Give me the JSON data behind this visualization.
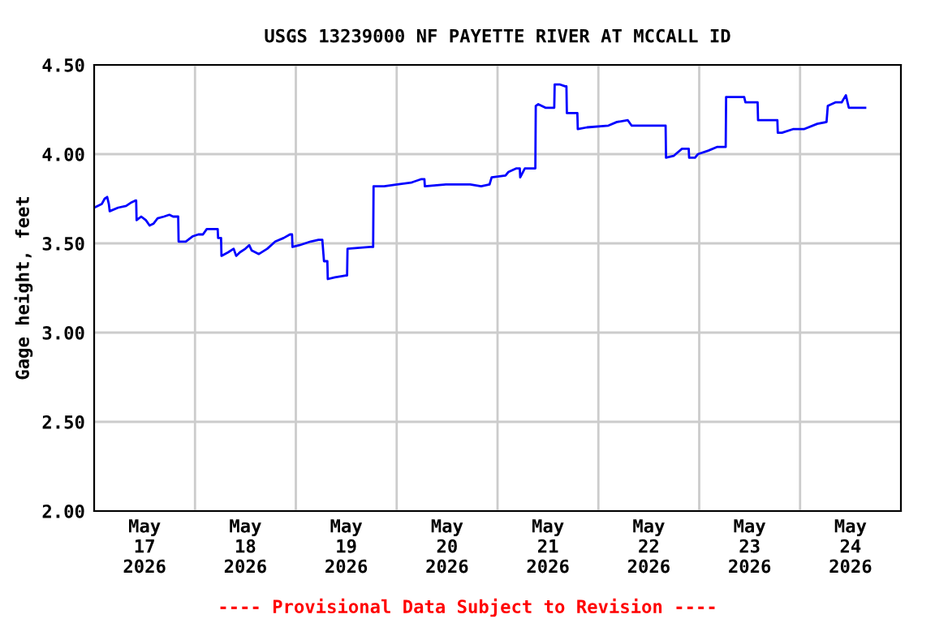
{
  "chart_data": {
    "type": "line",
    "title": "USGS 13239000 NF PAYETTE RIVER AT MCCALL ID",
    "ylabel": "Gage height, feet",
    "annotations": [
      "---- Provisional Data Subject to Revision ----"
    ],
    "xlim": [
      "2026-05-17T00:00",
      "2026-05-25T00:00"
    ],
    "xticks": [
      {
        "value": "2026-05-17T12:00",
        "label": "May\n17\n2026"
      },
      {
        "value": "2026-05-18T00:00",
        "label": null
      },
      {
        "value": "2026-05-18T12:00",
        "label": "May\n18\n2026"
      },
      {
        "value": "2026-05-19T00:00",
        "label": null
      },
      {
        "value": "2026-05-19T12:00",
        "label": "May\n19\n2026"
      },
      {
        "value": "2026-05-20T00:00",
        "label": null
      },
      {
        "value": "2026-05-20T12:00",
        "label": "May\n20\n2026"
      },
      {
        "value": "2026-05-21T00:00",
        "label": null
      },
      {
        "value": "2026-05-21T12:00",
        "label": "May\n21\n2026"
      },
      {
        "value": "2026-05-22T00:00",
        "label": null
      },
      {
        "value": "2026-05-22T12:00",
        "label": "May\n22\n2026"
      },
      {
        "value": "2026-05-23T00:00",
        "label": null
      },
      {
        "value": "2026-05-23T12:00",
        "label": "May\n23\n2026"
      },
      {
        "value": "2026-05-24T00:00",
        "label": null
      },
      {
        "value": "2026-05-24T12:00",
        "label": "May\n24\n2026"
      }
    ],
    "ylim": [
      2.0,
      4.5
    ],
    "yticks": [
      {
        "value": 2.0,
        "label": "2.00"
      },
      {
        "value": 2.5,
        "label": "2.50"
      },
      {
        "value": 3.0,
        "label": "3.00"
      },
      {
        "value": 3.5,
        "label": "3.50"
      },
      {
        "value": 4.0,
        "label": "4.00"
      },
      {
        "value": 4.5,
        "label": "4.50"
      }
    ],
    "grid": true,
    "series": [
      {
        "color": "#0000ff",
        "x": [
          "2026-05-17T00:00",
          "2026-05-17T01:48",
          "2026-05-17T02:30",
          "2026-05-17T03:06",
          "2026-05-17T03:30",
          "2026-05-17T03:42",
          "2026-05-17T05:42",
          "2026-05-17T07:36",
          "2026-05-17T08:54",
          "2026-05-17T09:48",
          "2026-05-17T10:00",
          "2026-05-17T10:06",
          "2026-05-17T11:12",
          "2026-05-17T12:18",
          "2026-05-17T13:12",
          "2026-05-17T14:06",
          "2026-05-17T15:06",
          "2026-05-17T16:36",
          "2026-05-17T17:54",
          "2026-05-17T18:48",
          "2026-05-17T19:42",
          "2026-05-17T20:00",
          "2026-05-17T20:06",
          "2026-05-17T21:48",
          "2026-05-17T23:30",
          "2026-05-18T00:48",
          "2026-05-18T01:54",
          "2026-05-18T02:48",
          "2026-05-18T05:00",
          "2026-05-18T05:24",
          "2026-05-18T05:30",
          "2026-05-18T06:12",
          "2026-05-18T06:18",
          "2026-05-18T07:54",
          "2026-05-18T09:12",
          "2026-05-18T09:48",
          "2026-05-18T10:42",
          "2026-05-18T12:00",
          "2026-05-18T12:54",
          "2026-05-18T13:30",
          "2026-05-18T15:12",
          "2026-05-18T17:12",
          "2026-05-18T19:06",
          "2026-05-18T21:06",
          "2026-05-18T22:36",
          "2026-05-18T23:06",
          "2026-05-18T23:12",
          "2026-05-19T00:54",
          "2026-05-19T03:30",
          "2026-05-19T05:24",
          "2026-05-19T06:18",
          "2026-05-19T06:42",
          "2026-05-19T07:30",
          "2026-05-19T07:36",
          "2026-05-19T09:18",
          "2026-05-19T11:54",
          "2026-05-19T12:12",
          "2026-05-19T12:18",
          "2026-05-19T17:42",
          "2026-05-19T18:24",
          "2026-05-19T18:30",
          "2026-05-19T21:00",
          "2026-05-20T00:06",
          "2026-05-20T03:24",
          "2026-05-20T05:54",
          "2026-05-20T06:36",
          "2026-05-20T06:42",
          "2026-05-20T11:42",
          "2026-05-20T17:30",
          "2026-05-20T20:06",
          "2026-05-20T22:06",
          "2026-05-20T22:36",
          "2026-05-21T01:54",
          "2026-05-21T02:36",
          "2026-05-21T04:30",
          "2026-05-21T05:18",
          "2026-05-21T05:24",
          "2026-05-21T06:30",
          "2026-05-21T08:36",
          "2026-05-21T09:00",
          "2026-05-21T09:06",
          "2026-05-21T09:42",
          "2026-05-21T11:24",
          "2026-05-21T13:12",
          "2026-05-21T13:30",
          "2026-05-21T13:36",
          "2026-05-21T14:54",
          "2026-05-21T16:06",
          "2026-05-21T16:24",
          "2026-05-21T16:30",
          "2026-05-21T18:30",
          "2026-05-21T19:00",
          "2026-05-21T19:06",
          "2026-05-21T21:18",
          "2026-05-22T02:24",
          "2026-05-22T04:24",
          "2026-05-22T07:00",
          "2026-05-22T07:54",
          "2026-05-22T10:12",
          "2026-05-22T15:36",
          "2026-05-22T16:00",
          "2026-05-22T16:06",
          "2026-05-22T17:54",
          "2026-05-22T18:24",
          "2026-05-22T19:54",
          "2026-05-22T21:12",
          "2026-05-22T21:30",
          "2026-05-22T21:36",
          "2026-05-22T23:00",
          "2026-05-22T23:42",
          "2026-05-23T02:12",
          "2026-05-23T04:12",
          "2026-05-23T05:54",
          "2026-05-23T06:18",
          "2026-05-23T06:24",
          "2026-05-23T08:48",
          "2026-05-23T10:42",
          "2026-05-23T11:00",
          "2026-05-23T13:00",
          "2026-05-23T13:54",
          "2026-05-23T14:00",
          "2026-05-23T15:48",
          "2026-05-23T18:12",
          "2026-05-23T18:36",
          "2026-05-23T18:42",
          "2026-05-23T19:42",
          "2026-05-23T22:18",
          "2026-05-24T00:54",
          "2026-05-24T04:06",
          "2026-05-24T06:18",
          "2026-05-24T06:36",
          "2026-05-24T08:24",
          "2026-05-24T09:54",
          "2026-05-24T10:54",
          "2026-05-24T11:36",
          "2026-05-24T13:06",
          "2026-05-24T15:30"
        ],
        "values": [
          3.7,
          3.72,
          3.75,
          3.76,
          3.72,
          3.68,
          3.7,
          3.71,
          3.73,
          3.74,
          3.74,
          3.63,
          3.65,
          3.63,
          3.6,
          3.61,
          3.64,
          3.65,
          3.66,
          3.65,
          3.65,
          3.65,
          3.51,
          3.51,
          3.54,
          3.55,
          3.55,
          3.58,
          3.58,
          3.58,
          3.53,
          3.53,
          3.43,
          3.45,
          3.47,
          3.43,
          3.45,
          3.47,
          3.49,
          3.46,
          3.44,
          3.47,
          3.51,
          3.53,
          3.55,
          3.55,
          3.48,
          3.49,
          3.51,
          3.52,
          3.52,
          3.4,
          3.4,
          3.3,
          3.31,
          3.32,
          3.32,
          3.47,
          3.48,
          3.48,
          3.82,
          3.82,
          3.83,
          3.84,
          3.86,
          3.86,
          3.82,
          3.83,
          3.83,
          3.82,
          3.83,
          3.87,
          3.88,
          3.9,
          3.92,
          3.92,
          3.87,
          3.92,
          3.92,
          3.92,
          4.27,
          4.28,
          4.26,
          4.26,
          4.26,
          4.39,
          4.39,
          4.38,
          4.38,
          4.23,
          4.23,
          4.23,
          4.14,
          4.15,
          4.16,
          4.18,
          4.19,
          4.16,
          4.16,
          4.16,
          4.16,
          3.98,
          3.99,
          4.0,
          4.03,
          4.03,
          4.03,
          3.98,
          3.98,
          4.0,
          4.02,
          4.04,
          4.04,
          4.04,
          4.32,
          4.32,
          4.32,
          4.29,
          4.29,
          4.29,
          4.19,
          4.19,
          4.19,
          4.19,
          4.12,
          4.12,
          4.14,
          4.14,
          4.17,
          4.18,
          4.27,
          4.29,
          4.29,
          4.33,
          4.26,
          4.26,
          4.26
        ]
      }
    ]
  }
}
